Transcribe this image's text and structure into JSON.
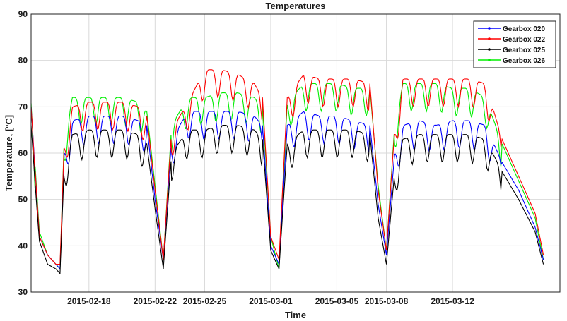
{
  "chart_data": {
    "type": "line",
    "title": "Temperatures",
    "xlabel": "Time",
    "ylabel": "Temperature, [°C]",
    "ylim": [
      30,
      90
    ],
    "yticks": [
      30,
      40,
      50,
      60,
      70,
      80,
      90
    ],
    "xticks": [
      {
        "x": "2015-02-18",
        "label": "2015-02-18"
      },
      {
        "x": "2015-02-22",
        "label": "2015-02-22"
      },
      {
        "x": "2015-02-25",
        "label": "2015-02-25"
      },
      {
        "x": "2015-03-01",
        "label": "2015-03-01"
      },
      {
        "x": "2015-03-05",
        "label": "2015-03-05"
      },
      {
        "x": "2015-03-08",
        "label": "2015-03-08"
      },
      {
        "x": "2015-03-12",
        "label": "2015-03-12"
      }
    ],
    "xlim": [
      "2015-02-14T12:00",
      "2015-03-18T12:00"
    ],
    "grid": true,
    "legend_position": "top-right",
    "series": [
      {
        "name": "Gearbox 020",
        "color": "#0000ff"
      },
      {
        "name": "Gearbox 022",
        "color": "#ff0000"
      },
      {
        "name": "Gearbox 025",
        "color": "#000000"
      },
      {
        "name": "Gearbox 026",
        "color": "#00ee00"
      }
    ],
    "approx_profile": {
      "x": [
        "2015-02-14T12:00",
        "2015-02-14T18:00",
        "2015-02-15T00:00",
        "2015-02-15T12:00",
        "2015-02-16T00:00",
        "2015-02-16T06:00",
        "2015-02-16T12:00",
        "2015-02-17T00:00",
        "2015-02-18T00:00",
        "2015-02-19T00:00",
        "2015-02-20T00:00",
        "2015-02-21T00:00",
        "2015-02-21T12:00",
        "2015-02-22T00:00",
        "2015-02-22T12:00",
        "2015-02-23T00:00",
        "2015-02-24T00:00",
        "2015-02-25T00:00",
        "2015-02-26T00:00",
        "2015-02-27T00:00",
        "2015-02-28T00:00",
        "2015-02-28T12:00",
        "2015-03-01T00:00",
        "2015-03-01T12:00",
        "2015-03-02T00:00",
        "2015-03-03T00:00",
        "2015-03-04T00:00",
        "2015-03-05T00:00",
        "2015-03-06T00:00",
        "2015-03-07T00:00",
        "2015-03-07T12:00",
        "2015-03-08T00:00",
        "2015-03-08T12:00",
        "2015-03-09T00:00",
        "2015-03-10T00:00",
        "2015-03-11T00:00",
        "2015-03-12T00:00",
        "2015-03-13T00:00",
        "2015-03-14T00:00",
        "2015-03-15T00:00",
        "2015-03-16T00:00",
        "2015-03-17T00:00",
        "2015-03-17T12:00"
      ],
      "Gearbox 020": [
        70,
        56,
        42,
        38,
        36,
        35,
        60,
        67,
        68,
        68,
        68,
        67,
        66,
        50,
        37,
        63,
        69,
        69,
        69,
        69,
        68,
        66,
        40,
        36,
        66,
        69,
        68,
        68,
        67,
        66,
        49,
        38,
        60,
        66,
        67,
        66,
        67,
        67,
        66,
        58,
        52,
        44,
        37
      ],
      "Gearbox 022": [
        70,
        56,
        42,
        38,
        36,
        36,
        62,
        70,
        71,
        71,
        71,
        70,
        68,
        52,
        37,
        65,
        71,
        78,
        78,
        77,
        75,
        72,
        42,
        37,
        72,
        77,
        76,
        76,
        76,
        75,
        52,
        39,
        65,
        76,
        76,
        76,
        76,
        76,
        75,
        63,
        55,
        47,
        38
      ],
      "Gearbox 025": [
        66,
        53,
        41,
        36,
        35,
        34,
        57,
        64,
        65,
        65,
        65,
        64,
        62,
        48,
        35,
        60,
        65,
        65,
        66,
        66,
        65,
        63,
        39,
        35,
        62,
        65,
        65,
        65,
        65,
        64,
        46,
        36,
        56,
        63,
        64,
        64,
        64,
        64,
        63,
        56,
        50,
        43,
        36
      ],
      "Gearbox 026": [
        71,
        57,
        43,
        38,
        36,
        35,
        63,
        72,
        72,
        72,
        72,
        71,
        69,
        53,
        37,
        66,
        72,
        72,
        73,
        73,
        72,
        70,
        42,
        35,
        71,
        75,
        75,
        75,
        74,
        74,
        53,
        39,
        66,
        75,
        75,
        75,
        74,
        74,
        72,
        62,
        54,
        46,
        37
      ]
    }
  }
}
